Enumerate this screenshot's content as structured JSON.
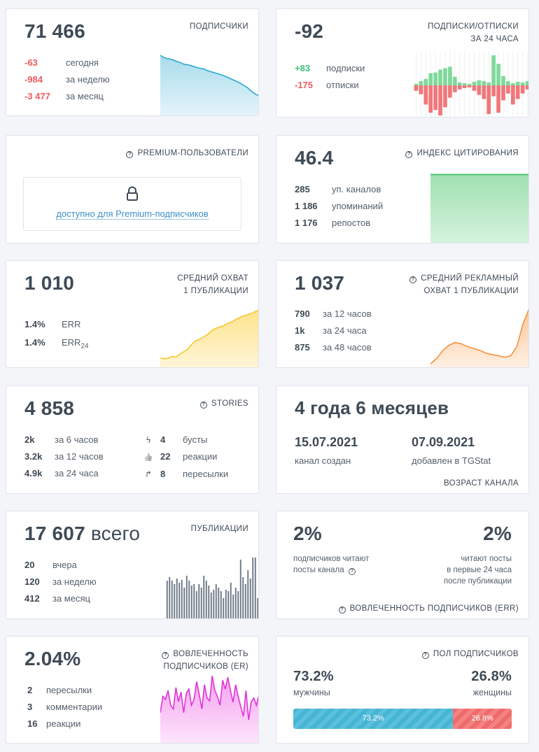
{
  "subscribers": {
    "value": "71 466",
    "title": "ПОДПИСЧИКИ",
    "rows": [
      {
        "value": "-63",
        "label": "сегодня"
      },
      {
        "value": "-984",
        "label": "за неделю"
      },
      {
        "value": "-3 477",
        "label": "за месяц"
      }
    ],
    "trend": [
      100,
      96,
      94,
      93,
      90,
      88,
      85,
      84,
      82,
      80,
      78,
      77,
      74,
      72,
      70,
      68,
      66,
      63,
      60,
      57,
      54,
      50,
      46,
      40,
      35,
      32
    ],
    "color": "#2aa9cf"
  },
  "subs_unsubs": {
    "value": "-92",
    "title_line1": "ПОДПИСКИ/ОТПИСКИ",
    "title_line2": "ЗА 24 ЧАСА",
    "rows": [
      {
        "value": "+83",
        "label": "подписки"
      },
      {
        "value": "-175",
        "label": "отписки"
      }
    ],
    "plus": [
      2,
      6,
      9,
      17,
      18,
      22,
      24,
      26,
      12,
      4,
      3,
      2,
      5,
      7,
      6,
      4,
      42,
      30,
      13,
      6,
      3,
      5,
      4,
      6
    ],
    "minus": [
      8,
      13,
      28,
      40,
      36,
      44,
      32,
      18,
      10,
      6,
      4,
      3,
      8,
      14,
      20,
      42,
      16,
      40,
      22,
      12,
      28,
      20,
      12,
      6
    ],
    "plus_color": "#7fd99a",
    "minus_color": "#f0777a"
  },
  "premium": {
    "title": "PREMIUM-ПОЛЬЗОВАТЕЛИ",
    "link": "доступно для Premium-подписчиков"
  },
  "citation": {
    "value": "46.4",
    "title": "ИНДЕКС ЦИТИРОВАНИЯ",
    "rows": [
      {
        "value": "285",
        "label": "уп. каналов"
      },
      {
        "value": "1 186",
        "label": "упоминаний"
      },
      {
        "value": "1 176",
        "label": "репостов"
      }
    ],
    "color": "#4cc171"
  },
  "reach": {
    "value": "1 010",
    "title_line1": "СРЕДНИЙ ОХВАТ",
    "title_line2": "1 ПУБЛИКАЦИИ",
    "rows": [
      {
        "value": "1.4%",
        "label": "ERR",
        "sub": ""
      },
      {
        "value": "1.4%",
        "label": "ERR",
        "sub": "24"
      }
    ],
    "trend": [
      10,
      8,
      9,
      12,
      11,
      16,
      20,
      24,
      32,
      38,
      40,
      44,
      48,
      54,
      58,
      60,
      62,
      66,
      68,
      72,
      75,
      78,
      80,
      82,
      85,
      88
    ],
    "color": "#f7c531"
  },
  "ad_reach": {
    "value": "1 037",
    "title_line1": "СРЕДНИЙ РЕКЛАМНЫЙ",
    "title_line2": "ОХВАТ 1 ПУБЛИКАЦИИ",
    "rows": [
      {
        "value": "790",
        "label": "за 12 часов"
      },
      {
        "value": "1k",
        "label": "за 24 часа"
      },
      {
        "value": "875",
        "label": "за 48 часов"
      }
    ],
    "trend": [
      2,
      10,
      22,
      30,
      34,
      32,
      28,
      25,
      22,
      18,
      16,
      14,
      12,
      14,
      28,
      62,
      85
    ],
    "color": "#f7913a"
  },
  "stories": {
    "value": "4 858",
    "title": "STORIES",
    "rows": [
      {
        "value": "2k",
        "label": "за 6 часов"
      },
      {
        "value": "3.2k",
        "label": "за 12 часов"
      },
      {
        "value": "4.9k",
        "label": "за 24 часа"
      }
    ],
    "rows2": [
      {
        "icon": "bolt-icon",
        "glyph": "ϟ",
        "value": "4",
        "label": "бусты"
      },
      {
        "icon": "thumbs-up-icon",
        "glyph": "👍",
        "value": "22",
        "label": "реакции"
      },
      {
        "icon": "share-arrow-icon",
        "glyph": "↱",
        "value": "8",
        "label": "пересылки"
      }
    ]
  },
  "age": {
    "value": "4 года 6 месяцев",
    "created_date": "15.07.2021",
    "created_label": "канал создан",
    "added_date": "07.09.2021",
    "added_label": "добавлен в TGStat",
    "title": "ВОЗРАСТ КАНАЛА"
  },
  "publications": {
    "value": "17 607",
    "suffix": "всего",
    "title": "ПУБЛИКАЦИИ",
    "rows": [
      {
        "value": "20",
        "label": "вчера"
      },
      {
        "value": "120",
        "label": "за неделю"
      },
      {
        "value": "412",
        "label": "за месяц"
      }
    ],
    "bars": [
      55,
      60,
      55,
      50,
      58,
      52,
      56,
      45,
      62,
      55,
      48,
      50,
      40,
      50,
      45,
      62,
      55,
      48,
      38,
      42,
      50,
      45,
      40,
      30,
      42,
      40,
      52,
      35,
      45,
      40,
      85,
      60,
      50,
      70,
      58,
      88,
      88,
      30
    ],
    "color": "#6b7886"
  },
  "err": {
    "left_value": "2%",
    "left_label_1": "подписчиков читают",
    "left_label_2": "посты канала",
    "right_value": "2%",
    "right_label_1": "читают посты",
    "right_label_2": "в первые 24 часа",
    "right_label_3": "после публикации",
    "title": "ВОВЛЕЧЕННОСТЬ ПОДПИСЧИКОВ (ERR)"
  },
  "er": {
    "value": "2.04%",
    "title_line1": "ВОВЛЕЧЕННОСТЬ",
    "title_line2": "ПОДПИСЧИКОВ (ER)",
    "rows": [
      {
        "value": "2",
        "label": "пересылки"
      },
      {
        "value": "3",
        "label": "комментарии"
      },
      {
        "value": "16",
        "label": "реакции"
      }
    ],
    "trend": [
      40,
      62,
      58,
      70,
      50,
      45,
      74,
      55,
      68,
      40,
      66,
      72,
      50,
      58,
      82,
      64,
      45,
      78,
      60,
      56,
      90,
      70,
      62,
      50,
      84,
      72,
      88,
      70,
      54,
      78,
      62,
      48,
      35,
      70,
      30,
      55,
      60,
      50,
      64
    ],
    "color": "#e033d8"
  },
  "gender": {
    "title": "ПОЛ ПОДПИСЧИКОВ",
    "male_value": "73.2%",
    "male_label": "мужчины",
    "female_value": "26.8%",
    "female_label": "женщины",
    "male_bar": "73.2%",
    "female_bar": "26.8%",
    "male_share": 73.2,
    "female_share": 26.8
  }
}
